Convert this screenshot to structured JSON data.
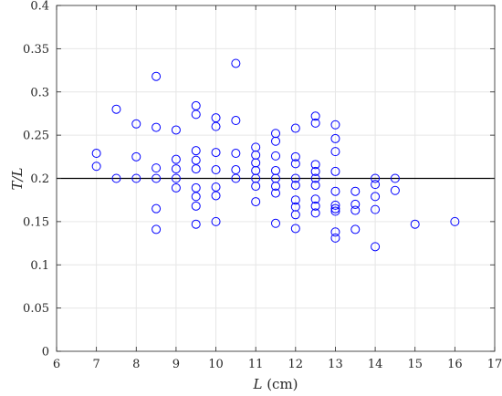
{
  "chart_data": {
    "type": "scatter",
    "xlabel_var": "L",
    "xlabel_unit": " (cm)",
    "ylabel": "T/L",
    "xlim": [
      6,
      17
    ],
    "ylim": [
      0,
      0.4
    ],
    "xticks": [
      "6",
      "7",
      "8",
      "9",
      "10",
      "11",
      "12",
      "13",
      "14",
      "15",
      "16",
      "17"
    ],
    "yticks": [
      "0",
      "0.05",
      "0.1",
      "0.15",
      "0.2",
      "0.25",
      "0.3",
      "0.35",
      "0.4"
    ],
    "grid": true,
    "reference_line_y": 0.2,
    "marker_color": "#0000ff",
    "line_color": "#000000",
    "points": [
      {
        "x": 7,
        "y": 0.229
      },
      {
        "x": 7,
        "y": 0.214
      },
      {
        "x": 7.5,
        "y": 0.28
      },
      {
        "x": 7.5,
        "y": 0.2
      },
      {
        "x": 8,
        "y": 0.263
      },
      {
        "x": 8,
        "y": 0.225
      },
      {
        "x": 8,
        "y": 0.2
      },
      {
        "x": 8.5,
        "y": 0.318
      },
      {
        "x": 8.5,
        "y": 0.259
      },
      {
        "x": 8.5,
        "y": 0.212
      },
      {
        "x": 8.5,
        "y": 0.2
      },
      {
        "x": 8.5,
        "y": 0.165
      },
      {
        "x": 8.5,
        "y": 0.141
      },
      {
        "x": 9,
        "y": 0.256
      },
      {
        "x": 9,
        "y": 0.222
      },
      {
        "x": 9,
        "y": 0.211
      },
      {
        "x": 9,
        "y": 0.2
      },
      {
        "x": 9,
        "y": 0.189
      },
      {
        "x": 9.5,
        "y": 0.284
      },
      {
        "x": 9.5,
        "y": 0.274
      },
      {
        "x": 9.5,
        "y": 0.232
      },
      {
        "x": 9.5,
        "y": 0.221
      },
      {
        "x": 9.5,
        "y": 0.211
      },
      {
        "x": 9.5,
        "y": 0.189
      },
      {
        "x": 9.5,
        "y": 0.179
      },
      {
        "x": 9.5,
        "y": 0.168
      },
      {
        "x": 9.5,
        "y": 0.147
      },
      {
        "x": 10,
        "y": 0.27
      },
      {
        "x": 10,
        "y": 0.26
      },
      {
        "x": 10,
        "y": 0.23
      },
      {
        "x": 10,
        "y": 0.21
      },
      {
        "x": 10,
        "y": 0.19
      },
      {
        "x": 10,
        "y": 0.18
      },
      {
        "x": 10,
        "y": 0.15
      },
      {
        "x": 10.5,
        "y": 0.333
      },
      {
        "x": 10.5,
        "y": 0.267
      },
      {
        "x": 10.5,
        "y": 0.229
      },
      {
        "x": 10.5,
        "y": 0.21
      },
      {
        "x": 10.5,
        "y": 0.2
      },
      {
        "x": 11,
        "y": 0.236
      },
      {
        "x": 11,
        "y": 0.227
      },
      {
        "x": 11,
        "y": 0.218
      },
      {
        "x": 11,
        "y": 0.209
      },
      {
        "x": 11,
        "y": 0.2
      },
      {
        "x": 11,
        "y": 0.191
      },
      {
        "x": 11,
        "y": 0.173
      },
      {
        "x": 11.5,
        "y": 0.252
      },
      {
        "x": 11.5,
        "y": 0.243
      },
      {
        "x": 11.5,
        "y": 0.226
      },
      {
        "x": 11.5,
        "y": 0.209
      },
      {
        "x": 11.5,
        "y": 0.2
      },
      {
        "x": 11.5,
        "y": 0.191
      },
      {
        "x": 11.5,
        "y": 0.183
      },
      {
        "x": 11.5,
        "y": 0.148
      },
      {
        "x": 12,
        "y": 0.258
      },
      {
        "x": 12,
        "y": 0.225
      },
      {
        "x": 12,
        "y": 0.217
      },
      {
        "x": 12,
        "y": 0.2
      },
      {
        "x": 12,
        "y": 0.192
      },
      {
        "x": 12,
        "y": 0.175
      },
      {
        "x": 12,
        "y": 0.167
      },
      {
        "x": 12,
        "y": 0.158
      },
      {
        "x": 12,
        "y": 0.142
      },
      {
        "x": 12.5,
        "y": 0.272
      },
      {
        "x": 12.5,
        "y": 0.264
      },
      {
        "x": 12.5,
        "y": 0.216
      },
      {
        "x": 12.5,
        "y": 0.208
      },
      {
        "x": 12.5,
        "y": 0.2
      },
      {
        "x": 12.5,
        "y": 0.192
      },
      {
        "x": 12.5,
        "y": 0.176
      },
      {
        "x": 12.5,
        "y": 0.168
      },
      {
        "x": 12.5,
        "y": 0.16
      },
      {
        "x": 13,
        "y": 0.262
      },
      {
        "x": 13,
        "y": 0.246
      },
      {
        "x": 13,
        "y": 0.231
      },
      {
        "x": 13,
        "y": 0.208
      },
      {
        "x": 13,
        "y": 0.185
      },
      {
        "x": 13,
        "y": 0.169
      },
      {
        "x": 13,
        "y": 0.165
      },
      {
        "x": 13,
        "y": 0.162
      },
      {
        "x": 13,
        "y": 0.138
      },
      {
        "x": 13,
        "y": 0.131
      },
      {
        "x": 13.5,
        "y": 0.185
      },
      {
        "x": 13.5,
        "y": 0.17
      },
      {
        "x": 13.5,
        "y": 0.163
      },
      {
        "x": 13.5,
        "y": 0.141
      },
      {
        "x": 14,
        "y": 0.2
      },
      {
        "x": 14,
        "y": 0.193
      },
      {
        "x": 14,
        "y": 0.179
      },
      {
        "x": 14,
        "y": 0.164
      },
      {
        "x": 14,
        "y": 0.121
      },
      {
        "x": 14.5,
        "y": 0.2
      },
      {
        "x": 14.5,
        "y": 0.186
      },
      {
        "x": 15,
        "y": 0.147
      },
      {
        "x": 16,
        "y": 0.15
      }
    ]
  }
}
